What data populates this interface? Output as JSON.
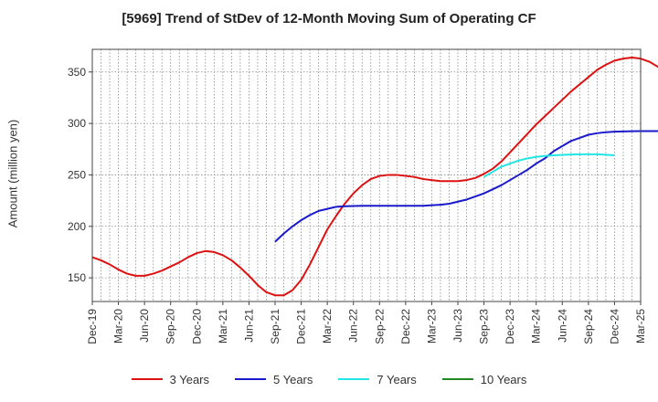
{
  "chart_data": {
    "type": "line",
    "title": "[5969]  Trend of StDev of 12-Month Moving Sum of Operating CF",
    "ylabel": "Amount (million yen)",
    "xlabel": "",
    "x_tick_labels": [
      "Dec-19",
      "Mar-20",
      "Jun-20",
      "Sep-20",
      "Dec-20",
      "Mar-21",
      "Jun-21",
      "Sep-21",
      "Dec-21",
      "Mar-22",
      "Jun-22",
      "Sep-22",
      "Dec-22",
      "Mar-23",
      "Jun-23",
      "Sep-23",
      "Dec-23",
      "Mar-24",
      "Jun-24",
      "Sep-24",
      "Dec-24",
      "Mar-25"
    ],
    "y_ticks": [
      150,
      200,
      250,
      300,
      350
    ],
    "ylim": [
      127,
      372
    ],
    "grid": true,
    "legend_position": "bottom",
    "series": [
      {
        "name": "3 Years",
        "color": "#dd1111",
        "start_month": 0,
        "values": [
          170,
          167,
          163,
          158,
          154,
          152,
          152,
          154,
          157,
          161,
          165,
          170,
          174,
          176,
          175,
          172,
          167,
          160,
          152,
          143,
          136,
          133,
          133,
          138,
          148,
          163,
          180,
          197,
          210,
          222,
          232,
          240,
          246,
          249,
          250,
          250,
          249,
          248,
          246,
          245,
          244,
          244,
          244,
          245,
          247,
          251,
          256,
          263,
          272,
          281,
          290,
          299,
          307,
          315,
          323,
          331,
          338,
          345,
          352,
          357,
          361,
          363,
          364,
          363,
          360,
          355,
          348,
          339,
          326
        ]
      },
      {
        "name": "5 Years",
        "color": "#1a1acc",
        "start_month": 21,
        "values": [
          185,
          193,
          200,
          206,
          211,
          215,
          217,
          219,
          219.5,
          219.8,
          220,
          220,
          220,
          220,
          220,
          220,
          220,
          220,
          220.5,
          221,
          222,
          224,
          226,
          229,
          232,
          236,
          240,
          245,
          250,
          255,
          261,
          266,
          273,
          278,
          283,
          286,
          289,
          290.5,
          291.5,
          292,
          292.2,
          292.4,
          292.5,
          292.5,
          292.5,
          292.5,
          292.5,
          292.5
        ]
      },
      {
        "name": "7 Years",
        "color": "#22e6e6",
        "start_month": 45,
        "values": [
          248,
          253,
          258,
          261,
          264,
          266,
          267.5,
          268.5,
          269,
          269.5,
          269.8,
          270,
          270,
          270,
          269.6,
          269
        ]
      },
      {
        "name": "10 Years",
        "color": "#228822",
        "start_month": 0,
        "values": []
      }
    ]
  }
}
